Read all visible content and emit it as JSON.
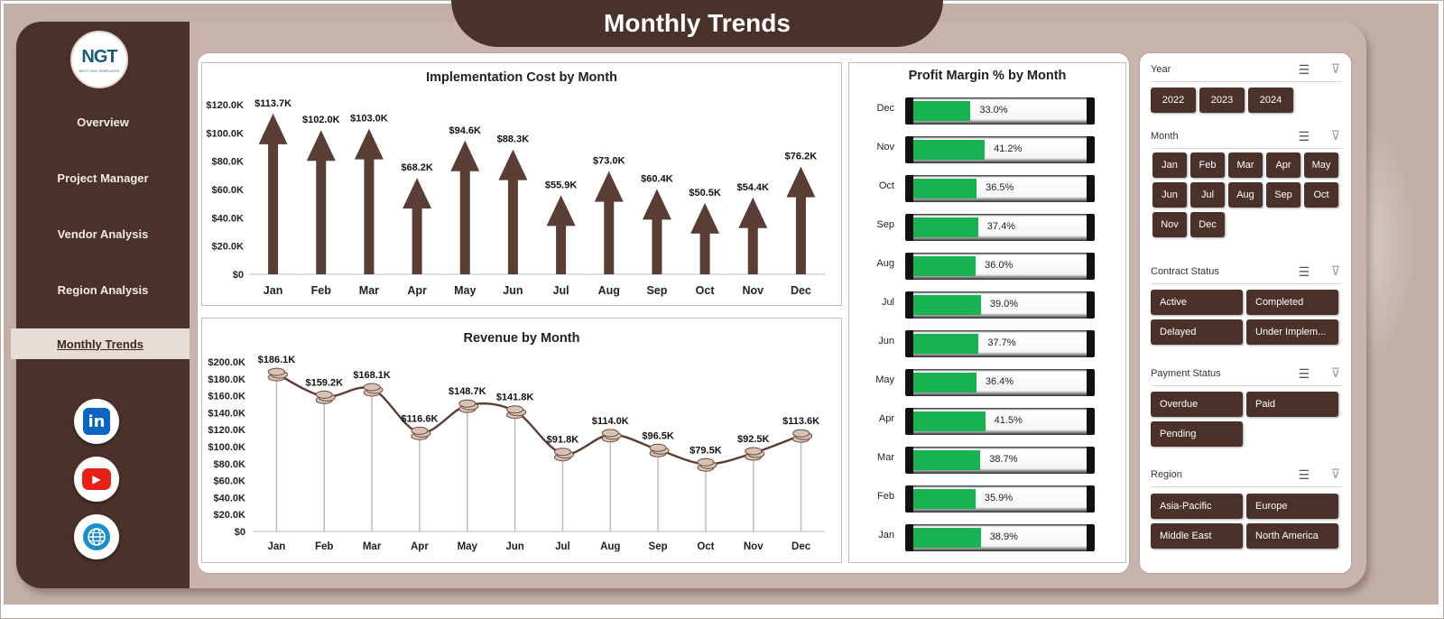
{
  "title": "Monthly Trends",
  "logo": {
    "text": "NGT",
    "subtext": "NEXT GEN TEMPLATES"
  },
  "nav": [
    {
      "label": "Overview",
      "active": false
    },
    {
      "label": "Project Manager",
      "active": false
    },
    {
      "label": "Vendor Analysis",
      "active": false
    },
    {
      "label": "Region Analysis",
      "active": false
    },
    {
      "label": "Monthly Trends",
      "active": true
    }
  ],
  "social": [
    {
      "icon": "linkedin-icon",
      "glyph": "in",
      "color": "#0a66c2"
    },
    {
      "icon": "youtube-icon",
      "glyph": "▶",
      "color": "#e62117"
    },
    {
      "icon": "globe-icon",
      "glyph": "🌐",
      "color": "#1e8fc6"
    }
  ],
  "colors": {
    "brown": "#4a312a",
    "green": "#19b253",
    "bg": "#c2afa8"
  },
  "chart_data": [
    {
      "type": "bar",
      "title": "Implementation Cost by Month",
      "categories": [
        "Jan",
        "Feb",
        "Mar",
        "Apr",
        "May",
        "Jun",
        "Jul",
        "Aug",
        "Sep",
        "Oct",
        "Nov",
        "Dec"
      ],
      "values": [
        113.7,
        102.0,
        103.0,
        68.2,
        94.6,
        88.3,
        55.9,
        73.0,
        60.4,
        50.5,
        54.4,
        76.2
      ],
      "data_labels": [
        "$113.7K",
        "$102.0K",
        "$103.0K",
        "$68.2K",
        "$94.6K",
        "$88.3K",
        "$55.9K",
        "$73.0K",
        "$60.4K",
        "$50.5K",
        "$54.4K",
        "$76.2K"
      ],
      "ylim": [
        0,
        120
      ],
      "yticks": [
        "$0",
        "$20.0K",
        "$40.0K",
        "$60.0K",
        "$80.0K",
        "$100.0K",
        "$120.0K"
      ],
      "marker": "arrow"
    },
    {
      "type": "line",
      "title": "Revenue by Month",
      "categories": [
        "Jan",
        "Feb",
        "Mar",
        "Apr",
        "May",
        "Jun",
        "Jul",
        "Aug",
        "Sep",
        "Oct",
        "Nov",
        "Dec"
      ],
      "values": [
        186.1,
        159.2,
        168.1,
        116.6,
        148.7,
        141.8,
        91.8,
        114.0,
        96.5,
        79.5,
        92.5,
        113.6
      ],
      "data_labels": [
        "$186.1K",
        "$159.2K",
        "$168.1K",
        "$116.6K",
        "$148.7K",
        "$141.8K",
        "$91.8K",
        "$114.0K",
        "$96.5K",
        "$79.5K",
        "$92.5K",
        "$113.6K"
      ],
      "ylim": [
        0,
        200
      ],
      "yticks": [
        "$0",
        "$20.0K",
        "$40.0K",
        "$60.0K",
        "$80.0K",
        "$100.0K",
        "$120.0K",
        "$140.0K",
        "$160.0K",
        "$180.0K",
        "$200.0K"
      ],
      "marker": "coins"
    },
    {
      "type": "bar",
      "orientation": "horizontal",
      "title": "Profit Margin % by Month",
      "categories": [
        "Dec",
        "Nov",
        "Oct",
        "Sep",
        "Aug",
        "Jul",
        "Jun",
        "May",
        "Apr",
        "Mar",
        "Feb",
        "Jan"
      ],
      "values": [
        33.0,
        41.2,
        36.5,
        37.4,
        36.0,
        39.0,
        37.7,
        36.4,
        41.5,
        38.7,
        35.9,
        38.9
      ],
      "data_labels": [
        "33.0%",
        "41.2%",
        "36.5%",
        "37.4%",
        "36.0%",
        "39.0%",
        "37.7%",
        "36.4%",
        "41.5%",
        "38.7%",
        "35.9%",
        "38.9%"
      ],
      "xlim": [
        0,
        100
      ]
    }
  ],
  "slicers": {
    "year": {
      "title": "Year",
      "items": [
        "2022",
        "2023",
        "2024"
      ]
    },
    "month": {
      "title": "Month",
      "items": [
        "Jan",
        "Feb",
        "Mar",
        "Apr",
        "May",
        "Jun",
        "Jul",
        "Aug",
        "Sep",
        "Oct",
        "Nov",
        "Dec"
      ]
    },
    "contract": {
      "title": "Contract Status",
      "items": [
        "Active",
        "Completed",
        "Delayed",
        "Under Implem..."
      ]
    },
    "payment": {
      "title": "Payment Status",
      "items": [
        "Overdue",
        "Paid",
        "Pending"
      ]
    },
    "region": {
      "title": "Region",
      "items": [
        "Asia-Pacific",
        "Europe",
        "Middle East",
        "North America"
      ]
    }
  }
}
